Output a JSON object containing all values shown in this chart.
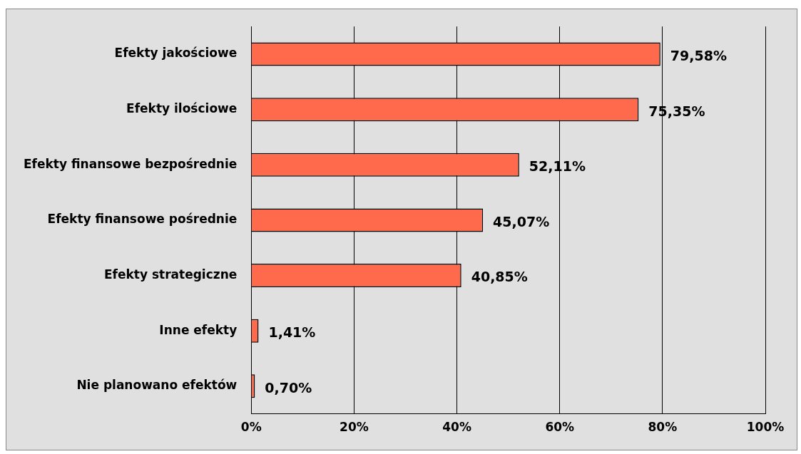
{
  "chart_data": {
    "type": "bar",
    "orientation": "horizontal",
    "categories": [
      "Efekty jakościowe",
      "Efekty ilościowe",
      "Efekty finansowe bezpośrednie",
      "Efekty finansowe pośrednie",
      "Efekty strategiczne",
      "Inne efekty",
      "Nie planowano efektów"
    ],
    "values": [
      79.58,
      75.35,
      52.11,
      45.07,
      40.85,
      1.41,
      0.7
    ],
    "value_labels": [
      "79,58%",
      "75,35%",
      "52,11%",
      "45,07%",
      "40,85%",
      "1,41%",
      "0,70%"
    ],
    "color": "#ff6a4d",
    "xlim": [
      0,
      100
    ],
    "xticks": [
      {
        "value": 0,
        "label": "0%"
      },
      {
        "value": 20,
        "label": "20%"
      },
      {
        "value": 40,
        "label": "40%"
      },
      {
        "value": 60,
        "label": "60%"
      },
      {
        "value": 80,
        "label": "80%"
      },
      {
        "value": 100,
        "label": "100%"
      }
    ],
    "grid": "x"
  }
}
